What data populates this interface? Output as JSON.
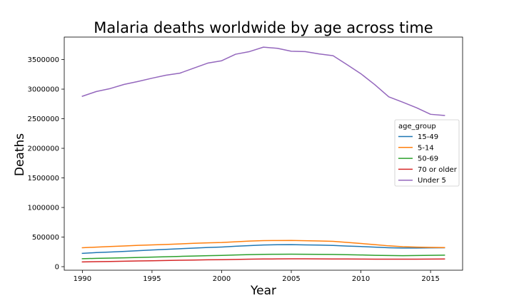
{
  "chart_data": {
    "type": "line",
    "title": "Malaria deaths worldwide by age across time",
    "xlabel": "Year",
    "ylabel": "Deaths",
    "xlim": [
      1988.7,
      2017.3
    ],
    "ylim": [
      -60000,
      3880000
    ],
    "xticks": [
      1990,
      1995,
      2000,
      2005,
      2010,
      2015
    ],
    "yticks": [
      0,
      500000,
      1000000,
      1500000,
      2000000,
      2500000,
      3000000,
      3500000
    ],
    "grid": false,
    "legend": {
      "title": "age_group",
      "placement": "center-right"
    },
    "x": [
      1990,
      1991,
      1992,
      1993,
      1994,
      1995,
      1996,
      1997,
      1998,
      1999,
      2000,
      2001,
      2002,
      2003,
      2004,
      2005,
      2006,
      2007,
      2008,
      2009,
      2010,
      2011,
      2012,
      2013,
      2014,
      2015,
      2016
    ],
    "series": [
      {
        "name": "15-49",
        "color": "#1f77b4",
        "values": [
          225000,
          238000,
          248000,
          258000,
          270000,
          282000,
          293000,
          303000,
          314000,
          324000,
          332000,
          345000,
          355000,
          366000,
          370000,
          372000,
          368000,
          365000,
          358000,
          348000,
          340000,
          330000,
          320000,
          315000,
          315000,
          318000,
          320000
        ]
      },
      {
        "name": "5-14",
        "color": "#ff7f0e",
        "values": [
          320000,
          330000,
          340000,
          350000,
          360000,
          368000,
          375000,
          385000,
          395000,
          402000,
          408000,
          420000,
          432000,
          440000,
          442000,
          443000,
          438000,
          434000,
          428000,
          410000,
          392000,
          372000,
          352000,
          338000,
          330000,
          325000,
          322000
        ]
      },
      {
        "name": "50-69",
        "color": "#2ca02c",
        "values": [
          135000,
          140000,
          145000,
          150000,
          156000,
          162000,
          168000,
          174000,
          180000,
          186000,
          190000,
          197000,
          203000,
          208000,
          210000,
          211000,
          210000,
          208000,
          206000,
          202000,
          198000,
          192000,
          188000,
          186000,
          188000,
          192000,
          195000
        ]
      },
      {
        "name": "70 or older",
        "color": "#d62728",
        "values": [
          80000,
          84000,
          88000,
          92000,
          96000,
          100000,
          104000,
          108000,
          112000,
          116000,
          118000,
          122000,
          126000,
          129000,
          131000,
          132000,
          132000,
          131000,
          130000,
          129000,
          128000,
          127000,
          126000,
          126000,
          127000,
          128000,
          129000
        ]
      },
      {
        "name": "Under 5",
        "color": "#9467bd",
        "values": [
          2880000,
          2960000,
          3010000,
          3080000,
          3130000,
          3185000,
          3235000,
          3270000,
          3355000,
          3440000,
          3480000,
          3590000,
          3635000,
          3710000,
          3690000,
          3640000,
          3635000,
          3595000,
          3565000,
          3415000,
          3260000,
          3075000,
          2870000,
          2780000,
          2685000,
          2575000,
          2555000
        ]
      }
    ]
  }
}
